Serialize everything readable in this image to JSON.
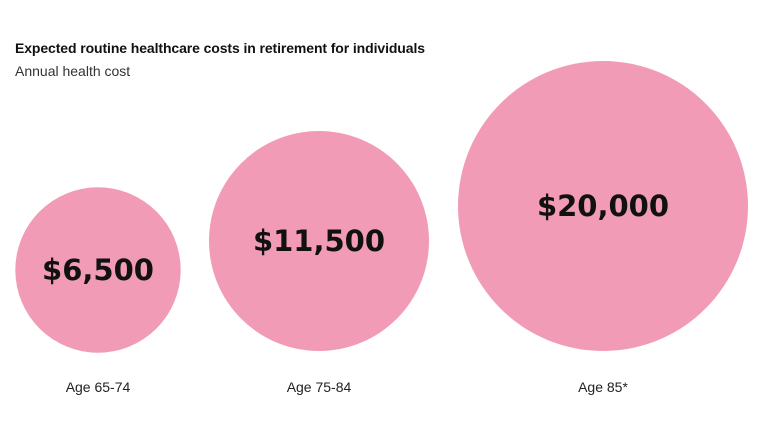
{
  "chart_data": {
    "type": "bubble",
    "title": "Expected routine healthcare costs in retirement for individuals",
    "subtitle": "Annual health cost",
    "categories": [
      "Age 65-74",
      "Age 75-84",
      "Age 85*"
    ],
    "values": [
      6500,
      11500,
      20000
    ],
    "value_labels": [
      "$6,500",
      "$11,500",
      "$20,000"
    ],
    "bubble_color": "#f19bb6"
  }
}
